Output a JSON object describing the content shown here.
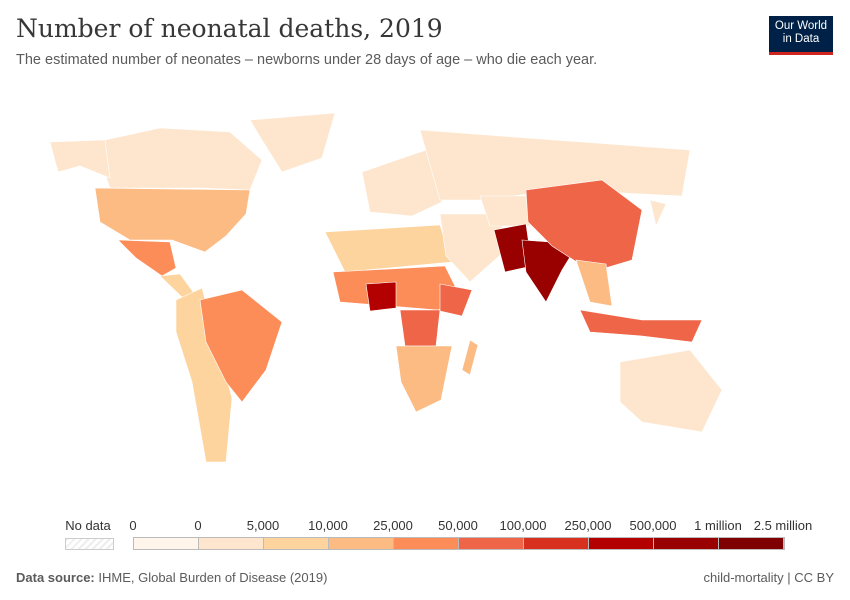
{
  "header": {
    "title": "Number of neonatal deaths, 2019",
    "subtitle": "The estimated number of neonates – newborns under 28 days of age – who die each year.",
    "logo": "Our World in Data"
  },
  "legend": {
    "no_data_label": "No data",
    "tick_labels": [
      "0",
      "0",
      "5,000",
      "10,000",
      "25,000",
      "50,000",
      "100,000",
      "250,000",
      "500,000",
      "1 million",
      "2.5 million"
    ],
    "colors": [
      "#fff5eb",
      "#fee6ce",
      "#fdd49e",
      "#fdbb84",
      "#fc8d59",
      "#ef6548",
      "#d7301f",
      "#b30000",
      "#990000",
      "#7f0000"
    ]
  },
  "map_data": [
    {
      "region": "Canada",
      "bin": 1
    },
    {
      "region": "Alaska",
      "bin": 1
    },
    {
      "region": "Greenland",
      "bin": 1
    },
    {
      "region": "United States",
      "bin": 3
    },
    {
      "region": "Mexico",
      "bin": 4
    },
    {
      "region": "Central America",
      "bin": 2
    },
    {
      "region": "South America",
      "bin": 2
    },
    {
      "region": "Brazil",
      "bin": 4
    },
    {
      "region": "Europe",
      "bin": 1
    },
    {
      "region": "Russia",
      "bin": 1
    },
    {
      "region": "North Africa",
      "bin": 2
    },
    {
      "region": "West & Central Africa",
      "bin": 4
    },
    {
      "region": "Nigeria",
      "bin": 7
    },
    {
      "region": "Ethiopia",
      "bin": 5
    },
    {
      "region": "DR Congo",
      "bin": 5
    },
    {
      "region": "Southern Africa",
      "bin": 3
    },
    {
      "region": "Madagascar",
      "bin": 3
    },
    {
      "region": "Middle East",
      "bin": 1
    },
    {
      "region": "Central Asia",
      "bin": 1
    },
    {
      "region": "Pakistan",
      "bin": 8
    },
    {
      "region": "India",
      "bin": 8
    },
    {
      "region": "China",
      "bin": 5
    },
    {
      "region": "Southeast Asia",
      "bin": 3
    },
    {
      "region": "Indonesia",
      "bin": 5
    },
    {
      "region": "Japan",
      "bin": 1
    },
    {
      "region": "Australia",
      "bin": 1
    }
  ],
  "footer": {
    "source_label": "Data source:",
    "source": "IHME, Global Burden of Disease (2019)",
    "license": "child-mortality | CC BY"
  }
}
